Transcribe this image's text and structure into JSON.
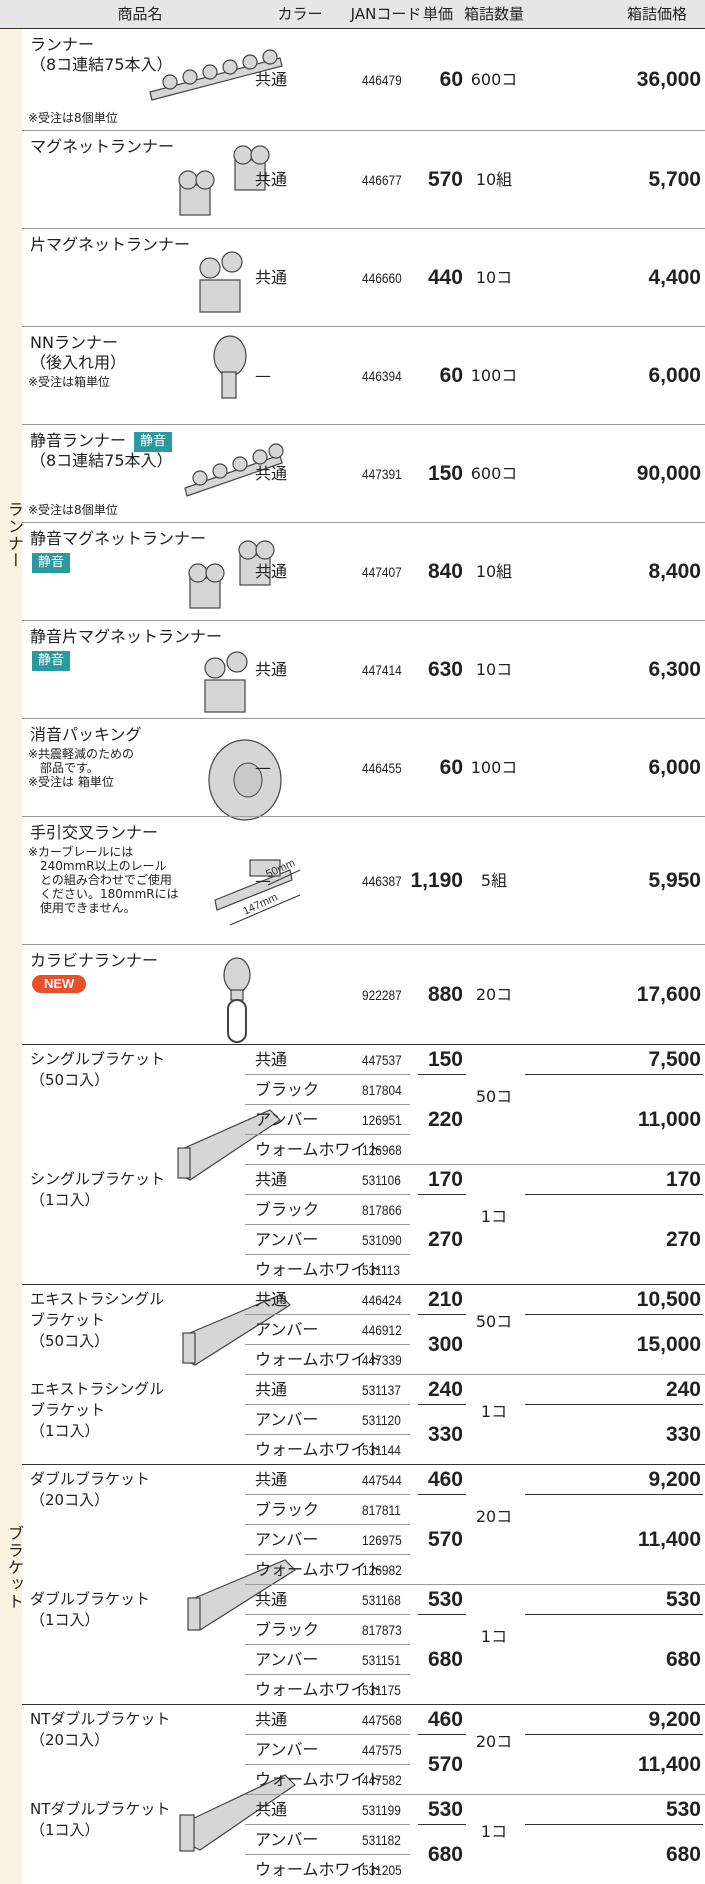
{
  "header": {
    "name": "商品名",
    "color": "カラー",
    "jan": "JANコード",
    "price": "単価",
    "qty": "箱詰数量",
    "box_price": "箱詰価格"
  },
  "runners": {
    "label": "ランナー",
    "items": [
      {
        "name": [
          "ランナー",
          "（8コ連結75本入）"
        ],
        "note": [
          "※受注は8個単位"
        ],
        "color": "共通",
        "jan": "446479",
        "price": "60",
        "qty": "600コ",
        "box_price": "36,000"
      },
      {
        "name": [
          "マグネットランナー"
        ],
        "color": "共通",
        "jan": "446677",
        "price": "570",
        "qty": "10組",
        "box_price": "5,700"
      },
      {
        "name": [
          "片マグネットランナー"
        ],
        "color": "共通",
        "jan": "446660",
        "price": "440",
        "qty": "10コ",
        "box_price": "4,400"
      },
      {
        "name": [
          "NNランナー",
          "（後入れ用）"
        ],
        "note": [
          "※受注は箱単位"
        ],
        "color": "—",
        "jan": "446394",
        "price": "60",
        "qty": "100コ",
        "box_price": "6,000"
      },
      {
        "name": [
          "静音ランナー",
          "（8コ連結75本入）"
        ],
        "badge": "静音",
        "note": [
          "※受注は8個単位"
        ],
        "color": "共通",
        "jan": "447391",
        "price": "150",
        "qty": "600コ",
        "box_price": "90,000"
      },
      {
        "name": [
          "静音マグネットランナー"
        ],
        "badge": "静音",
        "color": "共通",
        "jan": "447407",
        "price": "840",
        "qty": "10組",
        "box_price": "8,400"
      },
      {
        "name": [
          "静音片マグネットランナー"
        ],
        "badge": "静音",
        "color": "共通",
        "jan": "447414",
        "price": "630",
        "qty": "10コ",
        "box_price": "6,300"
      },
      {
        "name": [
          "消音パッキング"
        ],
        "note": [
          "※共震軽減のための",
          "　部品です。",
          "※受注は 箱単位"
        ],
        "color": "—",
        "jan": "446455",
        "price": "60",
        "qty": "100コ",
        "box_price": "6,000"
      },
      {
        "name": [
          "手引交叉ランナー"
        ],
        "note": [
          "※カーブレールには",
          "　240mmR以上のレール",
          "　との組み合わせでご使用",
          "　ください。180mmRには",
          "　使用できません。"
        ],
        "dimensions": [
          "50mm",
          "147mm"
        ],
        "color": "—",
        "jan": "446387",
        "price": "1,190",
        "qty": "5組",
        "box_price": "5,950"
      },
      {
        "name": [
          "カラビナランナー"
        ],
        "new_badge": "NEW",
        "jan": "922287",
        "price": "880",
        "qty": "20コ",
        "box_price": "17,600"
      }
    ]
  },
  "brackets": {
    "label": "ブラケット",
    "groups": [
      {
        "name": [
          "シングルブラケット",
          "（50コ入）"
        ],
        "qty": "50コ",
        "price_groups": [
          {
            "price": "150",
            "box_price": "7,500",
            "variants": [
              {
                "color": "共通",
                "jan": "447537"
              }
            ]
          },
          {
            "price": "220",
            "box_price": "11,000",
            "variants": [
              {
                "color": "ブラック",
                "jan": "817804"
              },
              {
                "color": "アンバー",
                "jan": "126951"
              },
              {
                "color": "ウォームホワイト",
                "jan": "126968"
              }
            ]
          }
        ]
      },
      {
        "name": [
          "シングルブラケット",
          "（1コ入）"
        ],
        "qty": "1コ",
        "price_groups": [
          {
            "price": "170",
            "box_price": "170",
            "variants": [
              {
                "color": "共通",
                "jan": "531106"
              }
            ]
          },
          {
            "price": "270",
            "box_price": "270",
            "variants": [
              {
                "color": "ブラック",
                "jan": "817866"
              },
              {
                "color": "アンバー",
                "jan": "531090"
              },
              {
                "color": "ウォームホワイト",
                "jan": "531113"
              }
            ]
          }
        ]
      },
      {
        "name": [
          "エキストラシングル",
          "ブラケット",
          "（50コ入）"
        ],
        "qty": "50コ",
        "price_groups": [
          {
            "price": "210",
            "box_price": "10,500",
            "variants": [
              {
                "color": "共通",
                "jan": "446424"
              }
            ]
          },
          {
            "price": "300",
            "box_price": "15,000",
            "variants": [
              {
                "color": "アンバー",
                "jan": "446912"
              },
              {
                "color": "ウォームホワイト",
                "jan": "447339"
              }
            ]
          }
        ]
      },
      {
        "name": [
          "エキストラシングル",
          "ブラケット",
          "（1コ入）"
        ],
        "qty": "1コ",
        "price_groups": [
          {
            "price": "240",
            "box_price": "240",
            "variants": [
              {
                "color": "共通",
                "jan": "531137"
              }
            ]
          },
          {
            "price": "330",
            "box_price": "330",
            "variants": [
              {
                "color": "アンバー",
                "jan": "531120"
              },
              {
                "color": "ウォームホワイト",
                "jan": "531144"
              }
            ]
          }
        ]
      },
      {
        "name": [
          "ダブルブラケット",
          "（20コ入）"
        ],
        "qty": "20コ",
        "price_groups": [
          {
            "price": "460",
            "box_price": "9,200",
            "variants": [
              {
                "color": "共通",
                "jan": "447544"
              }
            ]
          },
          {
            "price": "570",
            "box_price": "11,400",
            "variants": [
              {
                "color": "ブラック",
                "jan": "817811"
              },
              {
                "color": "アンバー",
                "jan": "126975"
              },
              {
                "color": "ウォームホワイト",
                "jan": "126982"
              }
            ]
          }
        ]
      },
      {
        "name": [
          "ダブルブラケット",
          "（1コ入）"
        ],
        "qty": "1コ",
        "price_groups": [
          {
            "price": "530",
            "box_price": "530",
            "variants": [
              {
                "color": "共通",
                "jan": "531168"
              }
            ]
          },
          {
            "price": "680",
            "box_price": "680",
            "variants": [
              {
                "color": "ブラック",
                "jan": "817873"
              },
              {
                "color": "アンバー",
                "jan": "531151"
              },
              {
                "color": "ウォームホワイト",
                "jan": "531175"
              }
            ]
          }
        ]
      },
      {
        "name": [
          "NTダブルブラケット",
          "（20コ入）"
        ],
        "qty": "20コ",
        "price_groups": [
          {
            "price": "460",
            "box_price": "9,200",
            "variants": [
              {
                "color": "共通",
                "jan": "447568"
              }
            ]
          },
          {
            "price": "570",
            "box_price": "11,400",
            "variants": [
              {
                "color": "アンバー",
                "jan": "447575"
              },
              {
                "color": "ウォームホワイト",
                "jan": "447582"
              }
            ]
          }
        ]
      },
      {
        "name": [
          "NTダブルブラケット",
          "（1コ入）"
        ],
        "qty": "1コ",
        "price_groups": [
          {
            "price": "530",
            "box_price": "530",
            "variants": [
              {
                "color": "共通",
                "jan": "531199"
              }
            ]
          },
          {
            "price": "680",
            "box_price": "680",
            "variants": [
              {
                "color": "アンバー",
                "jan": "531182"
              },
              {
                "color": "ウォームホワイト",
                "jan": "531205"
              }
            ]
          }
        ]
      }
    ]
  }
}
